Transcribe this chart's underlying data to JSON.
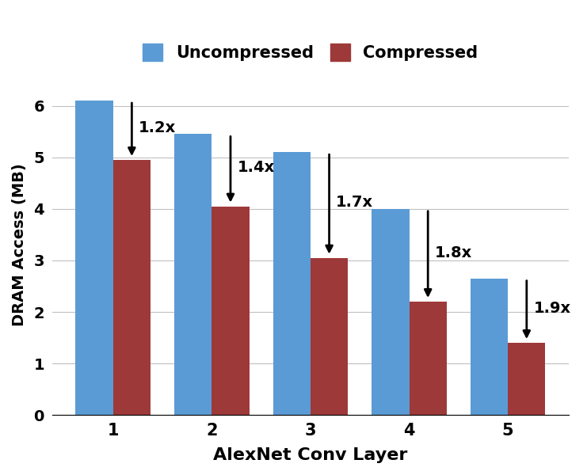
{
  "categories": [
    "1",
    "2",
    "3",
    "4",
    "5"
  ],
  "uncompressed": [
    6.1,
    5.45,
    5.1,
    4.0,
    2.65
  ],
  "compressed": [
    4.95,
    4.05,
    3.05,
    2.2,
    1.4
  ],
  "ratios": [
    "1.2x",
    "1.4x",
    "1.7x",
    "1.8x",
    "1.9x"
  ],
  "bar_color_uncomp": "#5b9bd5",
  "bar_color_comp": "#9e3939",
  "xlabel": "AlexNet Conv Layer",
  "ylabel": "DRAM Access (MB)",
  "ylim": [
    0,
    6.6
  ],
  "yticks": [
    0,
    1,
    2,
    3,
    4,
    5,
    6
  ],
  "legend_uncomp": "Uncompressed",
  "legend_comp": "Compressed",
  "bar_width": 0.38,
  "background_color": "#ffffff",
  "grid_color": "#c0c0c0",
  "figsize": [
    7.41,
    6.0
  ],
  "dpi": 100
}
